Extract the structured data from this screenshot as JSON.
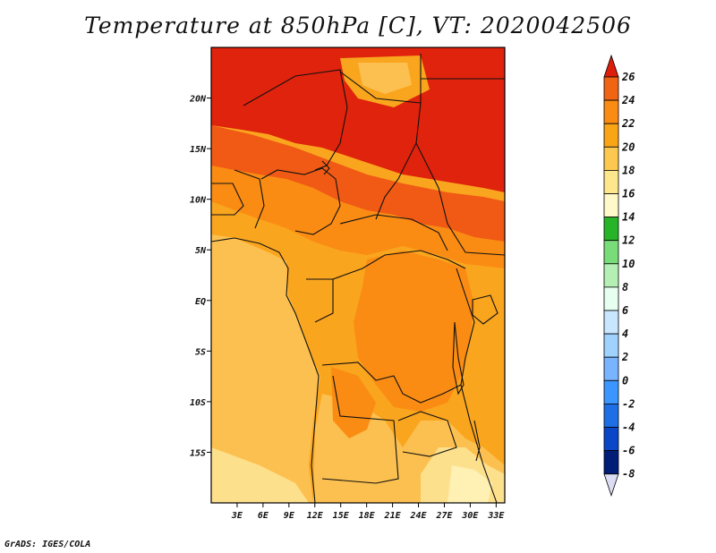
{
  "title": "Temperature at 850hPa [C], VT: 2020042506",
  "credit": "GrADS: IGES/COLA",
  "map": {
    "lat_range": [
      -20,
      25
    ],
    "lon_range": [
      0,
      34
    ],
    "lat_ticks": [
      {
        "value": 20,
        "label": "20N"
      },
      {
        "value": 15,
        "label": "15N"
      },
      {
        "value": 10,
        "label": "10N"
      },
      {
        "value": 5,
        "label": "5N"
      },
      {
        "value": 0,
        "label": "EQ"
      },
      {
        "value": -5,
        "label": "5S"
      },
      {
        "value": -10,
        "label": "10S"
      },
      {
        "value": -15,
        "label": "15S"
      }
    ],
    "lon_ticks": [
      {
        "value": 3,
        "label": "3E"
      },
      {
        "value": 6,
        "label": "6E"
      },
      {
        "value": 9,
        "label": "9E"
      },
      {
        "value": 12,
        "label": "12E"
      },
      {
        "value": 15,
        "label": "15E"
      },
      {
        "value": 18,
        "label": "18E"
      },
      {
        "value": 21,
        "label": "21E"
      },
      {
        "value": 24,
        "label": "24E"
      },
      {
        "value": 27,
        "label": "27E"
      },
      {
        "value": 30,
        "label": "30E"
      },
      {
        "value": 33,
        "label": "33E"
      }
    ]
  },
  "colorbar": {
    "levels": [
      {
        "label": "26",
        "color": "#f0280a"
      },
      {
        "label": "24",
        "color": "#f06414"
      },
      {
        "label": "22",
        "color": "#fa8c14"
      },
      {
        "label": "20",
        "color": "#faa516"
      },
      {
        "label": "18",
        "color": "#fcc850"
      },
      {
        "label": "16",
        "color": "#fde68c"
      },
      {
        "label": "14",
        "color": "#fff8c8"
      },
      {
        "label": "12",
        "color": "#28b428"
      },
      {
        "label": "10",
        "color": "#78dc78"
      },
      {
        "label": "8",
        "color": "#b4f0b4"
      },
      {
        "label": "6",
        "color": "#e6fff0"
      },
      {
        "label": "4",
        "color": "#c8e6ff"
      },
      {
        "label": "2",
        "color": "#a0d2ff"
      },
      {
        "label": "0",
        "color": "#78b4ff"
      },
      {
        "label": "-2",
        "color": "#3c96ff"
      },
      {
        "label": "-4",
        "color": "#1e6ee6"
      },
      {
        "label": "-6",
        "color": "#0a46c8"
      },
      {
        "label": "-8",
        "color": "#001e78"
      }
    ],
    "top_color": "#dc1e0a",
    "bottom_color": "#dcdcf5"
  },
  "field_colors": {
    "hot": "#e0230c",
    "warm": "#f05a14",
    "orange": "#fa8c14",
    "amber": "#faa51e",
    "yellow": "#fcc050",
    "pale": "#fde08c",
    "cream": "#fff0b4"
  }
}
